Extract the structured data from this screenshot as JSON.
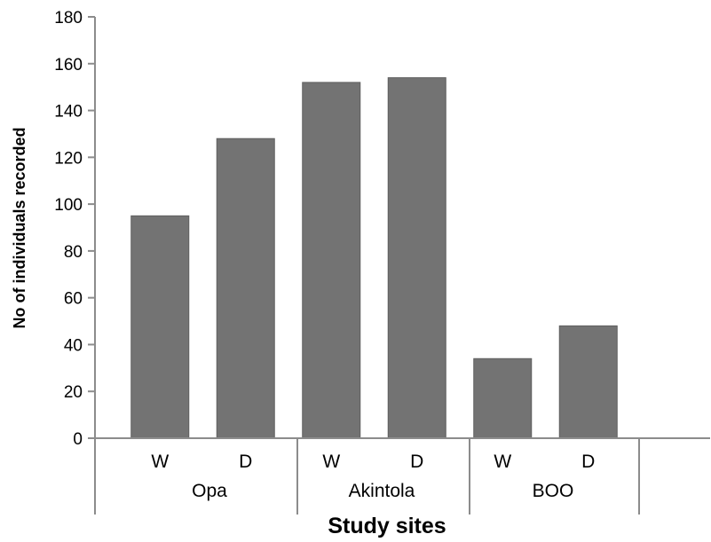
{
  "chart_data": {
    "type": "bar",
    "title": "",
    "xlabel": "Study sites",
    "ylabel": "No of individuals recorded",
    "ylim": [
      0,
      180
    ],
    "yticks": [
      0,
      20,
      40,
      60,
      80,
      100,
      120,
      140,
      160,
      180
    ],
    "grid": false,
    "legend": "none",
    "groups": [
      {
        "name": "Opa",
        "categories": [
          "W",
          "D"
        ],
        "values": [
          95,
          128
        ]
      },
      {
        "name": "Akintola",
        "categories": [
          "W",
          "D"
        ],
        "values": [
          152,
          154
        ]
      },
      {
        "name": "BOO",
        "categories": [
          "W",
          "D"
        ],
        "values": [
          34,
          48
        ]
      }
    ],
    "colors": {
      "bar": "#737373",
      "axis": "#8c8c8c"
    }
  }
}
